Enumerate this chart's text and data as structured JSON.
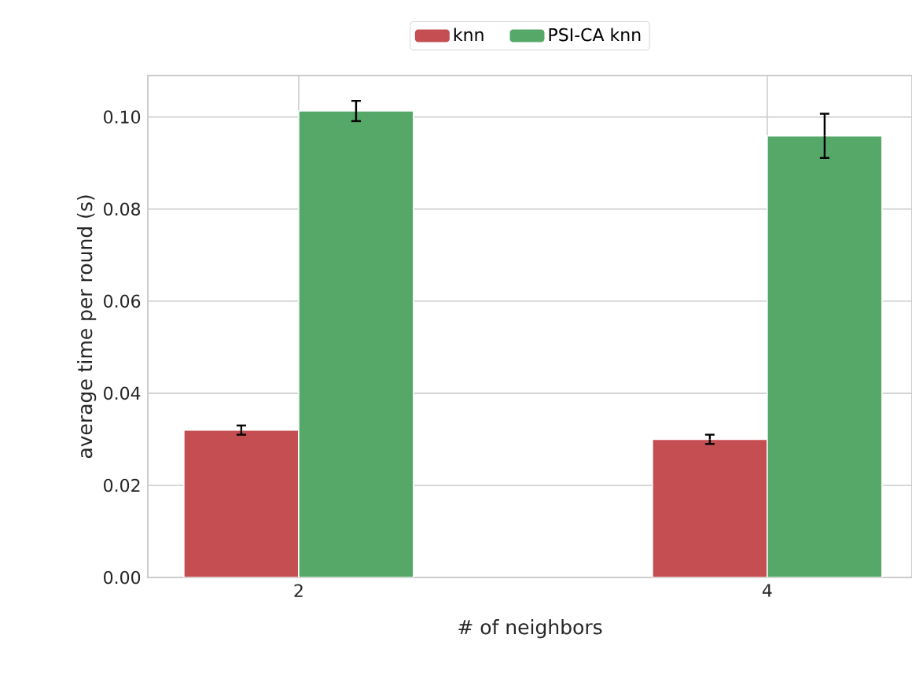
{
  "chart_data": {
    "type": "bar",
    "xlabel": "# of neighbors",
    "ylabel": "average time per round (s)",
    "categories": [
      "2",
      "4"
    ],
    "series": [
      {
        "name": "knn",
        "color": "#c44e52",
        "values": [
          0.032,
          0.03
        ],
        "errors": [
          0.001,
          0.001
        ]
      },
      {
        "name": "PSI-CA knn",
        "color": "#55a868",
        "values": [
          0.1013,
          0.0959
        ],
        "errors": [
          0.0022,
          0.0048
        ]
      }
    ],
    "ylim": [
      0,
      0.109
    ],
    "yticks": [
      {
        "value": 0,
        "label": "0.00"
      },
      {
        "value": 0.02,
        "label": "0.02"
      },
      {
        "value": 0.04,
        "label": "0.04"
      },
      {
        "value": 0.06,
        "label": "0.06"
      },
      {
        "value": 0.08,
        "label": "0.08"
      },
      {
        "value": 0.1,
        "label": "0.10"
      }
    ],
    "grid": true,
    "legend": "top"
  }
}
